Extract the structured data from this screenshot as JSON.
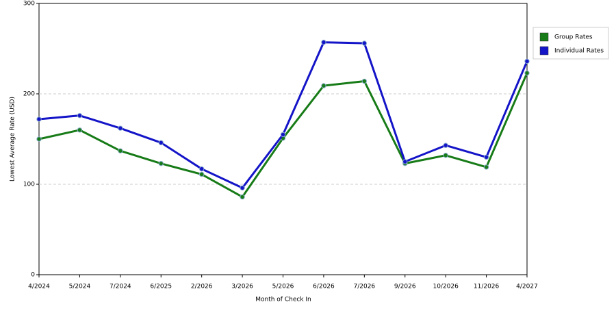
{
  "chart_data": {
    "type": "line",
    "x_label": "Month of Check In",
    "y_label": "Lowest Average Rate (USD)",
    "categories": [
      "4/2024",
      "5/2024",
      "7/2024",
      "6/2025",
      "2/2026",
      "3/2026",
      "5/2026",
      "6/2026",
      "7/2026",
      "9/2026",
      "10/2026",
      "11/2026",
      "4/2027"
    ],
    "series": [
      {
        "name": "Group Rates",
        "color": "#177b17",
        "values": [
          150,
          160,
          137,
          123,
          111,
          86,
          151,
          209,
          214,
          123,
          132,
          119,
          223
        ]
      },
      {
        "name": "Individual Rates",
        "color": "#1414c8",
        "values": [
          172,
          176,
          162,
          146,
          117,
          96,
          155,
          257,
          256,
          125,
          143,
          130,
          236
        ]
      }
    ],
    "ylim": [
      0,
      300
    ],
    "yticks": [
      0,
      100,
      200,
      300
    ],
    "grid": true,
    "legend": "right"
  }
}
